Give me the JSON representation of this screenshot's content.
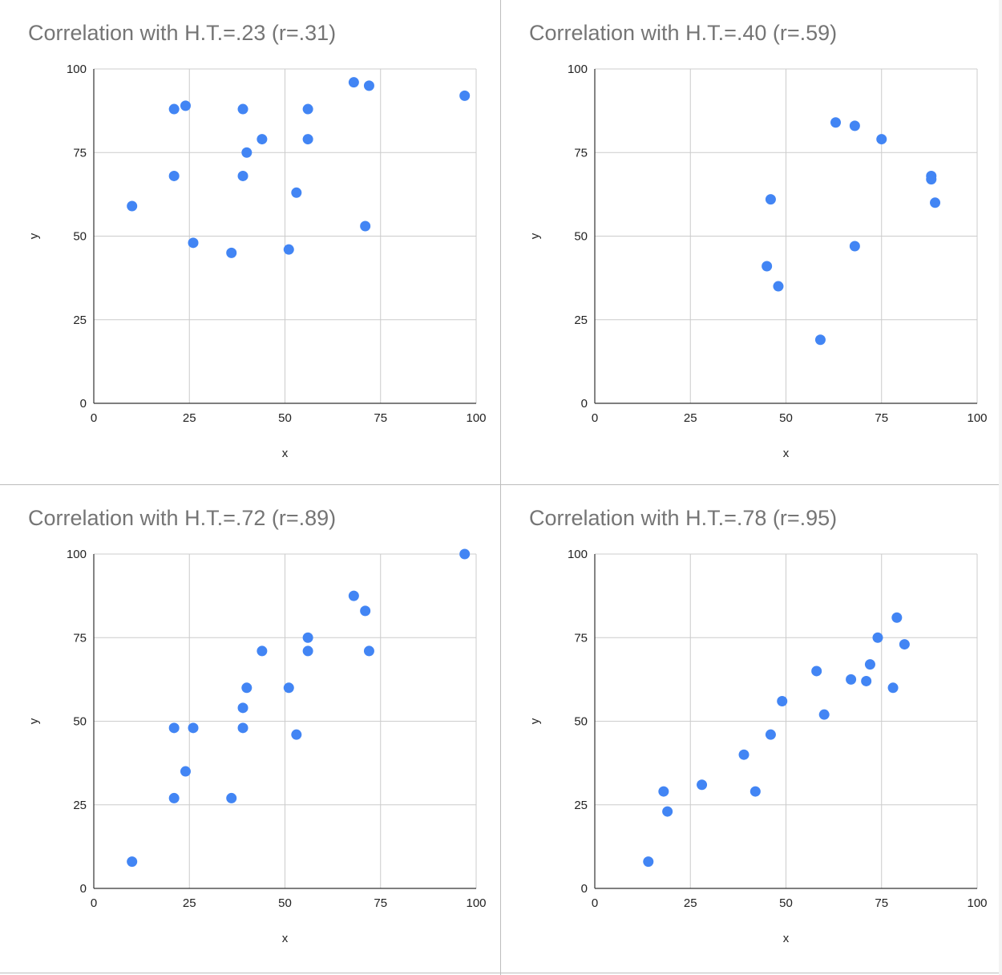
{
  "colors": {
    "point": "#4285f4",
    "gridline": "#cccccc",
    "axis": "#333333",
    "title": "#757575",
    "label": "#222222",
    "divider": "#bdbdbd"
  },
  "chart_data": [
    {
      "type": "scatter",
      "title": "Correlation with H.T.=.23 (r=.31)",
      "xlabel": "x",
      "ylabel": "y",
      "xlim": [
        0,
        100
      ],
      "ylim": [
        0,
        100
      ],
      "xticks": [
        "0",
        "25",
        "50",
        "75",
        "100"
      ],
      "yticks": [
        "0",
        "25",
        "50",
        "75",
        "100"
      ],
      "grid": true,
      "series": [
        {
          "name": "y",
          "points": [
            [
              10,
              59
            ],
            [
              21,
              88
            ],
            [
              21,
              68
            ],
            [
              24,
              89
            ],
            [
              26,
              48
            ],
            [
              36,
              45
            ],
            [
              39,
              88
            ],
            [
              39,
              68
            ],
            [
              40,
              75
            ],
            [
              44,
              79
            ],
            [
              51,
              46
            ],
            [
              53,
              63
            ],
            [
              56,
              88
            ],
            [
              56,
              79
            ],
            [
              68,
              96
            ],
            [
              71,
              53
            ],
            [
              72,
              95
            ],
            [
              97,
              92
            ]
          ]
        }
      ]
    },
    {
      "type": "scatter",
      "title": "Correlation with H.T.=.40 (r=.59)",
      "xlabel": "x",
      "ylabel": "y",
      "xlim": [
        0,
        100
      ],
      "ylim": [
        0,
        100
      ],
      "xticks": [
        "0",
        "25",
        "50",
        "75",
        "100"
      ],
      "yticks": [
        "0",
        "25",
        "50",
        "75",
        "100"
      ],
      "grid": true,
      "series": [
        {
          "name": "y",
          "points": [
            [
              45,
              41
            ],
            [
              46,
              61
            ],
            [
              48,
              35
            ],
            [
              59,
              19
            ],
            [
              63,
              84
            ],
            [
              68,
              83
            ],
            [
              68,
              47
            ],
            [
              75,
              79
            ],
            [
              88,
              68
            ],
            [
              88,
              67
            ],
            [
              89,
              60
            ]
          ]
        }
      ]
    },
    {
      "type": "scatter",
      "title": "Correlation with H.T.=.72 (r=.89)",
      "xlabel": "x",
      "ylabel": "y",
      "xlim": [
        0,
        100
      ],
      "ylim": [
        0,
        100
      ],
      "xticks": [
        "0",
        "25",
        "50",
        "75",
        "100"
      ],
      "yticks": [
        "0",
        "25",
        "50",
        "75",
        "100"
      ],
      "grid": true,
      "series": [
        {
          "name": "y",
          "points": [
            [
              10,
              8
            ],
            [
              21,
              48
            ],
            [
              21,
              27
            ],
            [
              24,
              35
            ],
            [
              26,
              48
            ],
            [
              36,
              27
            ],
            [
              39,
              54
            ],
            [
              39,
              48
            ],
            [
              40,
              60
            ],
            [
              44,
              71
            ],
            [
              51,
              60
            ],
            [
              53,
              46
            ],
            [
              56,
              75
            ],
            [
              56,
              71
            ],
            [
              68,
              87.5
            ],
            [
              71,
              83
            ],
            [
              72,
              71
            ],
            [
              97,
              100
            ]
          ]
        }
      ]
    },
    {
      "type": "scatter",
      "title": "Correlation with H.T.=.78 (r=.95)",
      "xlabel": "x",
      "ylabel": "y",
      "xlim": [
        0,
        100
      ],
      "ylim": [
        0,
        100
      ],
      "xticks": [
        "0",
        "25",
        "50",
        "75",
        "100"
      ],
      "yticks": [
        "0",
        "25",
        "50",
        "75",
        "100"
      ],
      "grid": true,
      "series": [
        {
          "name": "y",
          "points": [
            [
              14,
              8
            ],
            [
              18,
              29
            ],
            [
              19,
              23
            ],
            [
              28,
              31
            ],
            [
              39,
              40
            ],
            [
              42,
              29
            ],
            [
              46,
              46
            ],
            [
              49,
              56
            ],
            [
              58,
              65
            ],
            [
              60,
              52
            ],
            [
              67,
              62.5
            ],
            [
              71,
              62
            ],
            [
              72,
              67
            ],
            [
              74,
              75
            ],
            [
              78,
              60
            ],
            [
              79,
              81
            ],
            [
              81,
              73
            ]
          ]
        }
      ]
    }
  ]
}
